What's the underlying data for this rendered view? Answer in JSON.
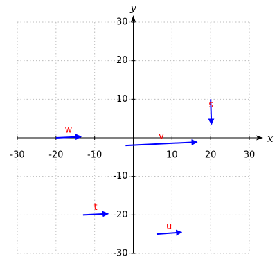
{
  "chart_data": {
    "type": "vector",
    "x_label": "x",
    "y_label": "y",
    "xlim": [
      -30,
      30
    ],
    "ylim": [
      -30,
      30
    ],
    "xticks": [
      -30,
      -20,
      -10,
      10,
      20,
      30
    ],
    "yticks": [
      -30,
      -20,
      -10,
      10,
      20,
      30
    ],
    "grid": true,
    "color": "#0000ff",
    "label_color": "#ff0000",
    "vectors": [
      {
        "name": "w",
        "x": -20,
        "y": 0,
        "dx": 6.5,
        "dy": 0.3
      },
      {
        "name": "v",
        "x": -2,
        "y": -2,
        "dx": 18.5,
        "dy": 0.9
      },
      {
        "name": "s",
        "x": 20,
        "y": 10,
        "dx": 0.2,
        "dy": -6.5
      },
      {
        "name": "t",
        "x": -13,
        "y": -20,
        "dx": 6.5,
        "dy": 0.3
      },
      {
        "name": "u",
        "x": 6,
        "y": -25,
        "dx": 6.5,
        "dy": 0.5
      }
    ]
  }
}
